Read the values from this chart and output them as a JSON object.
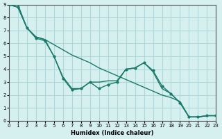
{
  "xlabel": "Humidex (Indice chaleur)",
  "ylabel": "",
  "bg_color": "#d6f0f0",
  "grid_color": "#b0d8d8",
  "line_color": "#1a7a6a",
  "xlim": [
    0,
    23
  ],
  "ylim": [
    0,
    9
  ],
  "xticks": [
    0,
    1,
    2,
    3,
    4,
    5,
    6,
    7,
    8,
    9,
    10,
    11,
    12,
    13,
    14,
    15,
    16,
    17,
    18,
    19,
    20,
    21,
    22,
    23
  ],
  "yticks": [
    0,
    1,
    2,
    3,
    4,
    5,
    6,
    7,
    8,
    9
  ],
  "line1_x": [
    0,
    1,
    2,
    3,
    4,
    5,
    6,
    7,
    8,
    9,
    10,
    11,
    12,
    13,
    14,
    15,
    16,
    17,
    18,
    19,
    20,
    21,
    22,
    23
  ],
  "line1_y": [
    9.0,
    9.0,
    7.2,
    6.5,
    6.3,
    5.9,
    5.5,
    5.1,
    4.8,
    4.5,
    4.1,
    3.8,
    3.5,
    3.2,
    2.9,
    2.6,
    2.3,
    2.0,
    1.8,
    1.5,
    0.3,
    0.3,
    0.4,
    0.4
  ],
  "line2_x": [
    0,
    1,
    2,
    3,
    4,
    5,
    6,
    7,
    8,
    9,
    10,
    11,
    12,
    13,
    14,
    15,
    16,
    17,
    18,
    19,
    20,
    21,
    22,
    23
  ],
  "line2_y": [
    9.0,
    8.8,
    7.2,
    6.4,
    6.2,
    5.0,
    3.3,
    2.4,
    2.5,
    3.0,
    2.5,
    2.8,
    3.0,
    4.0,
    4.1,
    4.5,
    3.9,
    2.7,
    2.1,
    1.4,
    0.3,
    0.3,
    0.4,
    0.4
  ],
  "line3_x": [
    0,
    1,
    2,
    3,
    4,
    5,
    6,
    7,
    8,
    9,
    10,
    11,
    12,
    13,
    14,
    15,
    16,
    17,
    18,
    19,
    20,
    21,
    22,
    23
  ],
  "line3_y": [
    9.0,
    8.8,
    7.2,
    6.5,
    6.3,
    5.0,
    3.4,
    2.5,
    2.5,
    3.0,
    3.0,
    3.1,
    3.1,
    4.0,
    4.1,
    4.5,
    3.8,
    2.5,
    2.1,
    1.4,
    0.3,
    0.3,
    0.4,
    0.4
  ]
}
